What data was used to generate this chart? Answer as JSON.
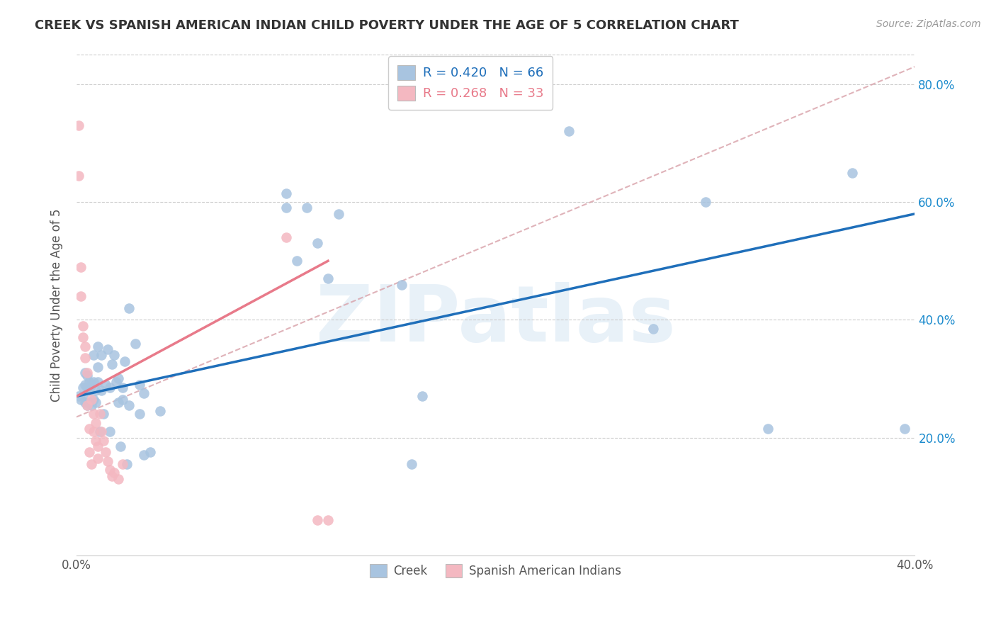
{
  "title": "CREEK VS SPANISH AMERICAN INDIAN CHILD POVERTY UNDER THE AGE OF 5 CORRELATION CHART",
  "source": "Source: ZipAtlas.com",
  "ylabel": "Child Poverty Under the Age of 5",
  "xlim": [
    0.0,
    0.4
  ],
  "ylim": [
    0.0,
    0.85
  ],
  "ytick_positions": [
    0.2,
    0.4,
    0.6,
    0.8
  ],
  "ytick_labels": [
    "20.0%",
    "40.0%",
    "60.0%",
    "80.0%"
  ],
  "creek_R": 0.42,
  "creek_N": 66,
  "sai_R": 0.268,
  "sai_N": 33,
  "creek_color": "#a8c4e0",
  "sai_color": "#f4b8c1",
  "creek_line_color": "#1f6fba",
  "sai_line_color": "#e87a8a",
  "watermark": "ZIPatlas",
  "creek_points": [
    [
      0.001,
      0.27
    ],
    [
      0.002,
      0.265
    ],
    [
      0.003,
      0.27
    ],
    [
      0.003,
      0.285
    ],
    [
      0.004,
      0.26
    ],
    [
      0.004,
      0.29
    ],
    [
      0.004,
      0.31
    ],
    [
      0.005,
      0.255
    ],
    [
      0.005,
      0.285
    ],
    [
      0.005,
      0.305
    ],
    [
      0.006,
      0.26
    ],
    [
      0.006,
      0.28
    ],
    [
      0.006,
      0.295
    ],
    [
      0.007,
      0.255
    ],
    [
      0.007,
      0.29
    ],
    [
      0.008,
      0.265
    ],
    [
      0.008,
      0.295
    ],
    [
      0.008,
      0.34
    ],
    [
      0.009,
      0.26
    ],
    [
      0.009,
      0.28
    ],
    [
      0.01,
      0.295
    ],
    [
      0.01,
      0.32
    ],
    [
      0.01,
      0.355
    ],
    [
      0.011,
      0.21
    ],
    [
      0.012,
      0.28
    ],
    [
      0.012,
      0.34
    ],
    [
      0.013,
      0.24
    ],
    [
      0.014,
      0.29
    ],
    [
      0.015,
      0.35
    ],
    [
      0.016,
      0.21
    ],
    [
      0.016,
      0.285
    ],
    [
      0.017,
      0.325
    ],
    [
      0.018,
      0.34
    ],
    [
      0.019,
      0.295
    ],
    [
      0.02,
      0.26
    ],
    [
      0.02,
      0.3
    ],
    [
      0.021,
      0.185
    ],
    [
      0.022,
      0.265
    ],
    [
      0.022,
      0.285
    ],
    [
      0.023,
      0.33
    ],
    [
      0.024,
      0.155
    ],
    [
      0.025,
      0.255
    ],
    [
      0.025,
      0.42
    ],
    [
      0.028,
      0.36
    ],
    [
      0.03,
      0.24
    ],
    [
      0.03,
      0.29
    ],
    [
      0.032,
      0.17
    ],
    [
      0.032,
      0.275
    ],
    [
      0.035,
      0.175
    ],
    [
      0.04,
      0.245
    ],
    [
      0.1,
      0.615
    ],
    [
      0.1,
      0.59
    ],
    [
      0.105,
      0.5
    ],
    [
      0.11,
      0.59
    ],
    [
      0.115,
      0.53
    ],
    [
      0.12,
      0.47
    ],
    [
      0.125,
      0.58
    ],
    [
      0.155,
      0.46
    ],
    [
      0.16,
      0.155
    ],
    [
      0.165,
      0.27
    ],
    [
      0.235,
      0.72
    ],
    [
      0.275,
      0.385
    ],
    [
      0.3,
      0.6
    ],
    [
      0.33,
      0.215
    ],
    [
      0.37,
      0.65
    ],
    [
      0.395,
      0.215
    ]
  ],
  "sai_points": [
    [
      0.001,
      0.73
    ],
    [
      0.001,
      0.645
    ],
    [
      0.002,
      0.49
    ],
    [
      0.002,
      0.44
    ],
    [
      0.003,
      0.39
    ],
    [
      0.003,
      0.37
    ],
    [
      0.004,
      0.355
    ],
    [
      0.004,
      0.335
    ],
    [
      0.005,
      0.31
    ],
    [
      0.005,
      0.255
    ],
    [
      0.006,
      0.215
    ],
    [
      0.006,
      0.175
    ],
    [
      0.007,
      0.155
    ],
    [
      0.007,
      0.265
    ],
    [
      0.008,
      0.24
    ],
    [
      0.008,
      0.21
    ],
    [
      0.009,
      0.195
    ],
    [
      0.009,
      0.225
    ],
    [
      0.01,
      0.185
    ],
    [
      0.01,
      0.165
    ],
    [
      0.011,
      0.24
    ],
    [
      0.012,
      0.21
    ],
    [
      0.013,
      0.195
    ],
    [
      0.014,
      0.175
    ],
    [
      0.015,
      0.16
    ],
    [
      0.016,
      0.145
    ],
    [
      0.017,
      0.135
    ],
    [
      0.018,
      0.14
    ],
    [
      0.02,
      0.13
    ],
    [
      0.022,
      0.155
    ],
    [
      0.1,
      0.54
    ],
    [
      0.115,
      0.06
    ],
    [
      0.12,
      0.06
    ]
  ],
  "dashed_line": [
    [
      0.0,
      0.235
    ],
    [
      0.4,
      0.83
    ]
  ]
}
